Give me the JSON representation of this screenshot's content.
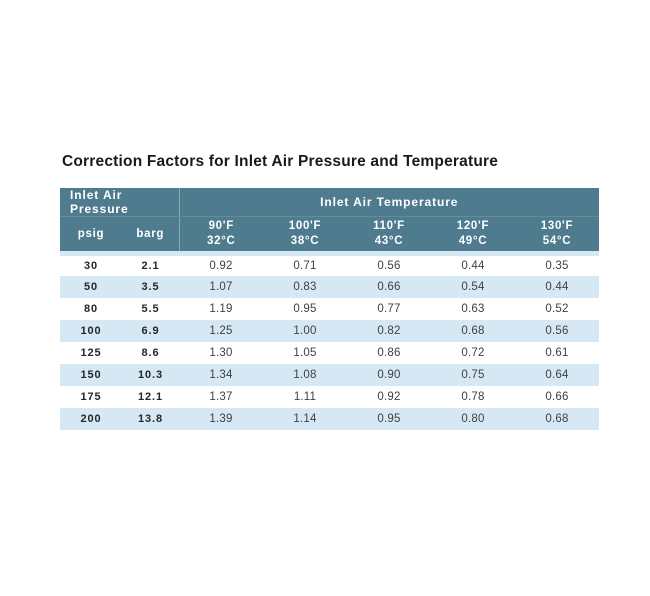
{
  "title": "Correction Factors for Inlet Air Pressure and Temperature",
  "colors": {
    "page_background": "#ffffff",
    "header_background": "#4e7b8e",
    "header_text": "#ffffff",
    "stripe_row": "#d7e8f5",
    "title_text": "#1a1a1a",
    "body_text": "#404040"
  },
  "table": {
    "group_headers": {
      "pressure": "Inlet Air Pressure",
      "temperature": "Inlet Air Temperature"
    },
    "pressure_columns": [
      "psig",
      "barg"
    ],
    "temperature_columns": [
      {
        "f": "90'F",
        "c": "32°C"
      },
      {
        "f": "100'F",
        "c": "38°C"
      },
      {
        "f": "110'F",
        "c": "43°C"
      },
      {
        "f": "120'F",
        "c": "49°C"
      },
      {
        "f": "130'F",
        "c": "54°C"
      }
    ],
    "rows": [
      {
        "psig": "30",
        "barg": "2.1",
        "factors": [
          "0.92",
          "0.71",
          "0.56",
          "0.44",
          "0.35"
        ]
      },
      {
        "psig": "50",
        "barg": "3.5",
        "factors": [
          "1.07",
          "0.83",
          "0.66",
          "0.54",
          "0.44"
        ]
      },
      {
        "psig": "80",
        "barg": "5.5",
        "factors": [
          "1.19",
          "0.95",
          "0.77",
          "0.63",
          "0.52"
        ]
      },
      {
        "psig": "100",
        "barg": "6.9",
        "factors": [
          "1.25",
          "1.00",
          "0.82",
          "0.68",
          "0.56"
        ]
      },
      {
        "psig": "125",
        "barg": "8.6",
        "factors": [
          "1.30",
          "1.05",
          "0.86",
          "0.72",
          "0.61"
        ]
      },
      {
        "psig": "150",
        "barg": "10.3",
        "factors": [
          "1.34",
          "1.08",
          "0.90",
          "0.75",
          "0.64"
        ]
      },
      {
        "psig": "175",
        "barg": "12.1",
        "factors": [
          "1.37",
          "1.11",
          "0.92",
          "0.78",
          "0.66"
        ]
      },
      {
        "psig": "200",
        "barg": "13.8",
        "factors": [
          "1.39",
          "1.14",
          "0.95",
          "0.80",
          "0.68"
        ]
      }
    ]
  }
}
